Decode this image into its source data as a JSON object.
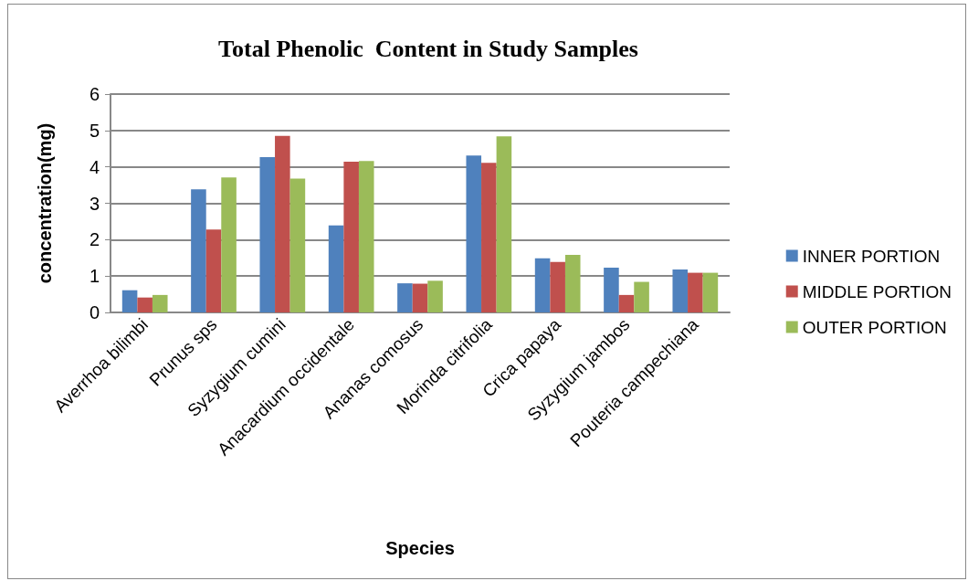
{
  "chart_data": {
    "type": "bar",
    "title": "Total Phenolic  Content in Study Samples",
    "xlabel": "Species",
    "ylabel": "concentration(mg)",
    "categories": [
      "Averrhoa bilimbi",
      "Prunus sps",
      "Syzygium cumini",
      "Anacardium occidentale",
      "Ananas comosus",
      "Morinda citrifolia",
      "Crica papaya",
      "Syzygium jambos",
      "Pouteria campechiana"
    ],
    "series": [
      {
        "name": "INNER PORTION",
        "color": "#4f81bd",
        "values": [
          0.61,
          3.38,
          4.27,
          2.39,
          0.8,
          4.31,
          1.49,
          1.23,
          1.18
        ]
      },
      {
        "name": "MIDDLE PORTION",
        "color": "#c0504d",
        "values": [
          0.41,
          2.28,
          4.85,
          4.14,
          0.79,
          4.11,
          1.39,
          0.48,
          1.09
        ]
      },
      {
        "name": "OUTER PORTION",
        "color": "#9bbb59",
        "values": [
          0.48,
          3.71,
          3.68,
          4.16,
          0.87,
          4.84,
          1.58,
          0.84,
          1.09
        ]
      }
    ],
    "ylim": [
      0,
      6
    ],
    "yticks": [
      0,
      1,
      2,
      3,
      4,
      5,
      6
    ],
    "grid": "y",
    "legend": "right"
  }
}
